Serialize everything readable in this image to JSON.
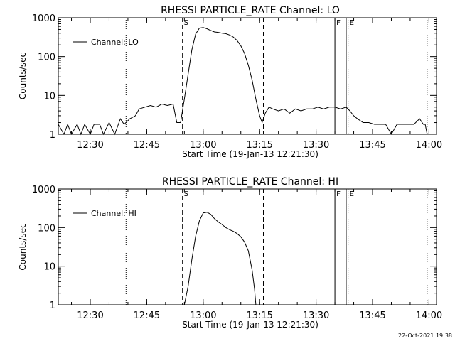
{
  "chart_data": [
    {
      "type": "line",
      "title": "RHESSI PARTICLE_RATE Channel: LO",
      "xlabel": "Start Time (19-Jan-13 12:21:30)",
      "ylabel": "Counts/sec",
      "y_scale": "log",
      "ylim": [
        1,
        1000
      ],
      "y_ticks": [
        1,
        10,
        100,
        1000
      ],
      "x_range_minutes": [
        "12:21:30",
        "14:02:00"
      ],
      "x_ticks": [
        "12:30",
        "12:45",
        "13:00",
        "13:15",
        "13:30",
        "13:45",
        "14:00"
      ],
      "legend": {
        "label": "Channel: LO",
        "position": "top-left"
      },
      "markers": [
        {
          "time": "12:39:30",
          "style": "dotted",
          "label": ""
        },
        {
          "time": "12:54:30",
          "style": "dashed",
          "label": "S"
        },
        {
          "time": "13:16:00",
          "style": "dashed",
          "label": ""
        },
        {
          "time": "13:35:00",
          "style": "solid",
          "label": "F"
        },
        {
          "time": "13:38:00",
          "style": "solid",
          "label": ""
        },
        {
          "time": "13:38:30",
          "style": "dotted",
          "label": "E"
        },
        {
          "time": "13:59:30",
          "style": "dotted",
          "label": ""
        }
      ],
      "series": [
        {
          "name": "Channel: LO",
          "x": [
            "12:21:30",
            "12:23:00",
            "12:24:00",
            "12:25:00",
            "12:26:30",
            "12:27:30",
            "12:28:30",
            "12:30:00",
            "12:31:00",
            "12:32:30",
            "12:33:30",
            "12:35:00",
            "12:36:30",
            "12:38:00",
            "12:39:00",
            "12:40:30",
            "12:42:00",
            "12:43:00",
            "12:44:30",
            "12:46:00",
            "12:47:30",
            "12:49:00",
            "12:50:30",
            "12:52:00",
            "12:53:00",
            "12:54:00",
            "12:55:00",
            "12:56:00",
            "12:57:00",
            "12:58:00",
            "12:59:00",
            "13:00:00",
            "13:01:00",
            "13:02:00",
            "13:03:00",
            "13:04:00",
            "13:05:00",
            "13:06:00",
            "13:07:00",
            "13:08:00",
            "13:09:00",
            "13:10:00",
            "13:11:00",
            "13:12:00",
            "13:13:00",
            "13:14:00",
            "13:15:00",
            "13:15:40",
            "13:16:30",
            "13:17:30",
            "13:18:30",
            "13:20:00",
            "13:21:30",
            "13:23:00",
            "13:24:30",
            "13:26:00",
            "13:27:30",
            "13:29:00",
            "13:30:30",
            "13:32:00",
            "13:33:30",
            "13:35:00",
            "13:36:30",
            "13:38:00",
            "13:39:00",
            "13:40:00",
            "13:41:00",
            "13:42:30",
            "13:44:00",
            "13:45:30",
            "13:47:00",
            "13:48:30",
            "13:50:00",
            "13:51:30",
            "13:53:00",
            "13:54:30",
            "13:56:00",
            "13:57:30",
            "13:58:30",
            "13:59:00",
            "13:59:30"
          ],
          "values": [
            1.8,
            1.0,
            1.8,
            1.0,
            1.8,
            1.0,
            1.8,
            1.0,
            1.8,
            1.8,
            1.0,
            2.0,
            1.0,
            2.5,
            1.8,
            2.5,
            3.0,
            4.5,
            5.0,
            5.5,
            5.0,
            6.0,
            5.5,
            6.0,
            2.0,
            2.0,
            8,
            35,
            150,
            380,
            540,
            560,
            520,
            470,
            430,
            420,
            400,
            390,
            360,
            320,
            260,
            190,
            120,
            60,
            25,
            8,
            3,
            2.0,
            3.5,
            5.0,
            4.5,
            4.0,
            4.5,
            3.5,
            4.5,
            4.0,
            4.5,
            4.5,
            5.0,
            4.5,
            5.0,
            5.0,
            4.5,
            5.0,
            4.0,
            3.0,
            2.5,
            2.0,
            2.0,
            1.8,
            1.8,
            1.8,
            1.0,
            1.8,
            1.8,
            1.8,
            1.8,
            2.5,
            1.8,
            1.8,
            1.0
          ]
        }
      ]
    },
    {
      "type": "line",
      "title": "RHESSI PARTICLE_RATE Channel: HI",
      "xlabel": "Start Time (19-Jan-13 12:21:30)",
      "ylabel": "Counts/sec",
      "y_scale": "log",
      "ylim": [
        1,
        1000
      ],
      "y_ticks": [
        1,
        10,
        100,
        1000
      ],
      "x_range_minutes": [
        "12:21:30",
        "14:02:00"
      ],
      "x_ticks": [
        "12:30",
        "12:45",
        "13:00",
        "13:15",
        "13:30",
        "13:45",
        "14:00"
      ],
      "legend": {
        "label": "Channel: HI",
        "position": "top-left"
      },
      "markers": [
        {
          "time": "12:39:30",
          "style": "dotted",
          "label": ""
        },
        {
          "time": "12:54:30",
          "style": "dashed",
          "label": "S"
        },
        {
          "time": "13:16:00",
          "style": "dashed",
          "label": ""
        },
        {
          "time": "13:35:00",
          "style": "solid",
          "label": "F"
        },
        {
          "time": "13:38:00",
          "style": "solid",
          "label": ""
        },
        {
          "time": "13:38:30",
          "style": "dotted",
          "label": "E"
        },
        {
          "time": "13:59:30",
          "style": "dotted",
          "label": ""
        }
      ],
      "series": [
        {
          "name": "Channel: HI",
          "x": [
            "12:55:00",
            "12:56:00",
            "12:57:00",
            "12:58:00",
            "12:59:00",
            "13:00:00",
            "13:01:00",
            "13:02:00",
            "13:03:00",
            "13:04:00",
            "13:05:00",
            "13:06:00",
            "13:07:00",
            "13:08:00",
            "13:09:00",
            "13:10:00",
            "13:11:00",
            "13:12:00",
            "13:13:00",
            "13:13:40",
            "13:14:00"
          ],
          "values": [
            1.0,
            3,
            15,
            60,
            150,
            240,
            250,
            220,
            170,
            140,
            120,
            100,
            88,
            80,
            70,
            58,
            42,
            25,
            8,
            2.5,
            1.0
          ]
        }
      ]
    }
  ],
  "footer": {
    "timestamp": "22-Oct-2021 19:38"
  }
}
